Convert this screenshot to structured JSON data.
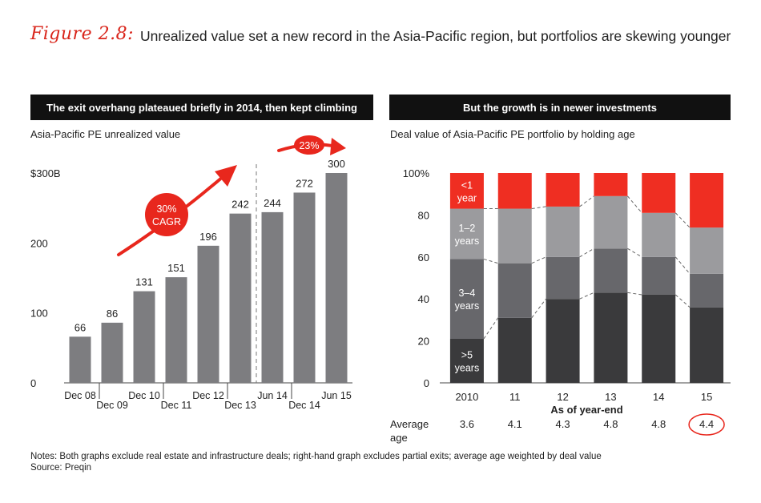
{
  "figure": {
    "label": "Figure 2.8:",
    "title": "Unrealized value set a new record in the Asia-Pacific region, but portfolios are skewing younger"
  },
  "chart_data": [
    {
      "type": "bar",
      "header": "The exit overhang plateaued briefly in 2014, then kept climbing",
      "title": "Asia-Pacific PE unrealized value",
      "categories": [
        "Dec 08",
        "Dec 09",
        "Dec 10",
        "Dec 11",
        "Dec 12",
        "Dec 13",
        "Jun 14",
        "Dec 14",
        "Jun 15"
      ],
      "values": [
        66,
        86,
        131,
        151,
        196,
        242,
        244,
        272,
        300
      ],
      "ylim": [
        0,
        300
      ],
      "yticks": [
        0,
        100,
        200,
        300
      ],
      "ytick_labels": [
        "0",
        "100",
        "200",
        "$300B"
      ],
      "divider_after_category": "Dec 13",
      "annotations": [
        {
          "text_lines": [
            "30%",
            "CAGR"
          ],
          "type": "arrow-badge"
        },
        {
          "text_lines": [
            "23%"
          ],
          "type": "arrow-badge"
        }
      ],
      "colors": {
        "bar": "#7d7d80",
        "accent": "#e8271d"
      }
    },
    {
      "type": "stacked-bar-100",
      "header": "But the growth is in newer investments",
      "title": "Deal value of Asia-Pacific PE portfolio by holding age",
      "xlabel": "As of year-end",
      "categories": [
        "2010",
        "11",
        "12",
        "13",
        "14",
        "15"
      ],
      "ylim": [
        0,
        100
      ],
      "yticks": [
        0,
        20,
        40,
        60,
        80,
        100
      ],
      "ytick_labels": [
        "0",
        "20",
        "40",
        "60",
        "80",
        "100%"
      ],
      "series": [
        {
          "name": ">5 years",
          "label_lines": [
            ">5",
            "years"
          ],
          "color": "#3a3a3c",
          "values": [
            21,
            31,
            40,
            43,
            42,
            36
          ]
        },
        {
          "name": "3–4 years",
          "label_lines": [
            "3–4",
            "years"
          ],
          "color": "#67676b",
          "values": [
            38,
            26,
            20,
            21,
            18,
            16
          ]
        },
        {
          "name": "1–2 years",
          "label_lines": [
            "1–2",
            "years"
          ],
          "color": "#9b9b9e",
          "values": [
            24,
            26,
            24,
            25,
            21,
            22
          ]
        },
        {
          "name": "<1 year",
          "label_lines": [
            "<1",
            "year"
          ],
          "color": "#ef2e22",
          "values": [
            17,
            17,
            16,
            11,
            19,
            26
          ]
        }
      ],
      "average_age": {
        "label_lines": [
          "Average",
          "age"
        ],
        "values": [
          "3.6",
          "4.1",
          "4.3",
          "4.8",
          "4.8",
          "4.4"
        ],
        "circled": "4.4"
      }
    }
  ],
  "notes": {
    "line1": "Notes: Both graphs exclude real estate and infrastructure deals; right-hand graph excludes partial exits; average age weighted by deal value",
    "line2": "Source: Preqin"
  }
}
